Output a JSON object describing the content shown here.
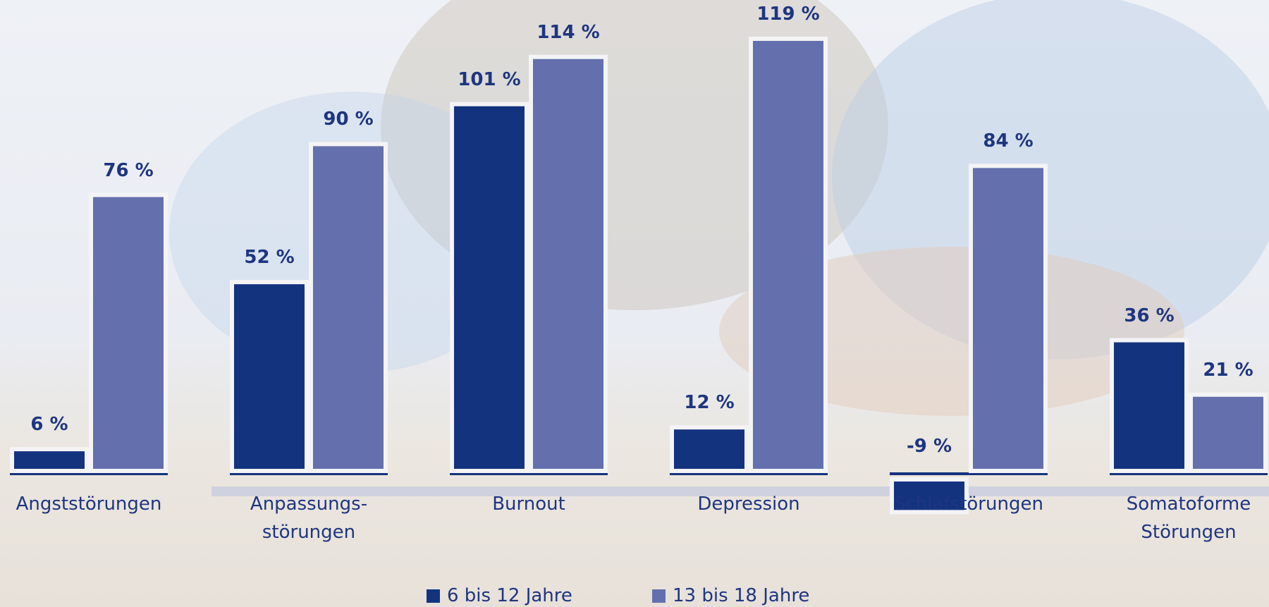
{
  "chart_data": {
    "type": "bar",
    "categories": [
      "Angststörungen",
      "Anpassungs-\nstörungen",
      "Burnout",
      "Depression",
      "Schlafstörungen",
      "Somatoforme\nStörungen"
    ],
    "series": [
      {
        "name": "6 bis 12 Jahre",
        "color": "#14337f",
        "values": [
          6,
          52,
          101,
          12,
          -9,
          36
        ],
        "value_labels": [
          "6 %",
          "52 %",
          "101 %",
          "12 %",
          "-9 %",
          "36 %"
        ]
      },
      {
        "name": "13 bis 18 Jahre",
        "color": "#6470ad",
        "values": [
          76,
          90,
          114,
          119,
          84,
          21
        ],
        "value_labels": [
          "76 %",
          "90 %",
          "114 %",
          "119 %",
          "84 %",
          "21 %"
        ]
      }
    ]
  }
}
